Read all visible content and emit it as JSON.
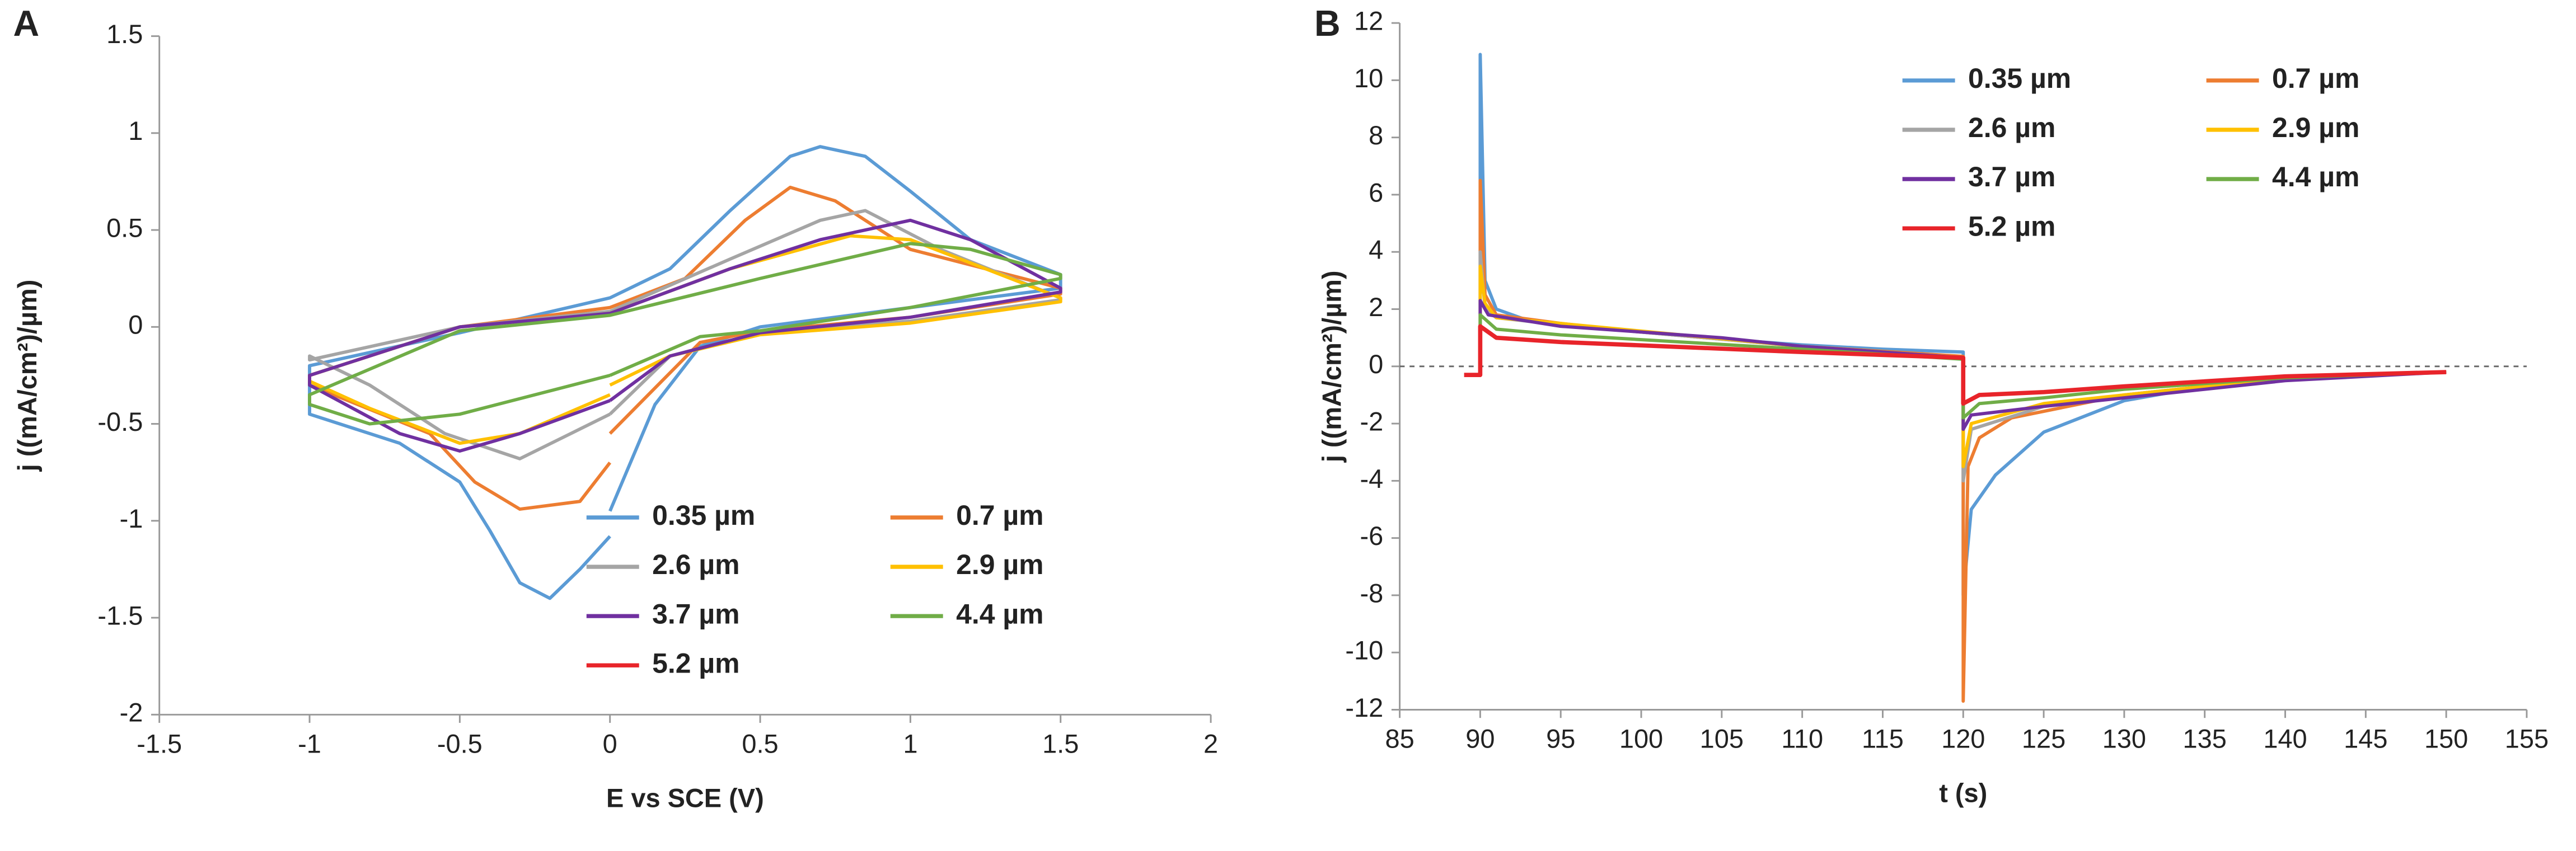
{
  "chart_data": [
    {
      "type": "line",
      "label": "A",
      "x_label": "E vs SCE (V)",
      "y_label": "j ((mA/cm²)/µm)",
      "xlim": [
        -1.5,
        2
      ],
      "xticks": [
        -1.5,
        -1,
        -0.5,
        0,
        0.5,
        1,
        1.5,
        2
      ],
      "ylim": [
        -2,
        1.5
      ],
      "yticks": [
        -2,
        -1.5,
        -1,
        -0.5,
        0,
        0.5,
        1,
        1.5
      ],
      "grid": false,
      "zero_line": false,
      "legend": "lower right",
      "series": [
        {
          "name": "0.35 µm",
          "color": "#5b9bd5",
          "x": [
            0,
            -0.1,
            -0.2,
            -0.3,
            -0.4,
            -0.5,
            -0.7,
            -1,
            -1,
            -0.5,
            0,
            0.2,
            0.4,
            0.6,
            0.7,
            0.85,
            1,
            1.2,
            1.5,
            1.5,
            1,
            0.5,
            0.3,
            0.15,
            0
          ],
          "values": [
            -1.08,
            -1.25,
            -1.4,
            -1.32,
            -1.05,
            -0.8,
            -0.6,
            -0.45,
            -0.2,
            -0.03,
            0.15,
            0.3,
            0.6,
            0.88,
            0.93,
            0.88,
            0.7,
            0.45,
            0.27,
            0.2,
            0.1,
            0,
            -0.1,
            -0.4,
            -0.95
          ]
        },
        {
          "name": "0.7 µm",
          "color": "#ed7d31",
          "x": [
            0,
            -0.1,
            -0.3,
            -0.45,
            -0.6,
            -1,
            -1,
            -0.5,
            0,
            0.25,
            0.45,
            0.6,
            0.75,
            1,
            1.5,
            1.5,
            1,
            0.5,
            0.3,
            0
          ],
          "values": [
            -0.7,
            -0.9,
            -0.94,
            -0.8,
            -0.55,
            -0.3,
            -0.25,
            0,
            0.1,
            0.25,
            0.55,
            0.72,
            0.65,
            0.4,
            0.2,
            0.17,
            0.05,
            -0.02,
            -0.08,
            -0.55
          ]
        },
        {
          "name": "2.6 µm",
          "color": "#a5a5a5",
          "x": [
            0,
            -0.3,
            -0.55,
            -0.8,
            -1,
            -1,
            -0.5,
            0,
            0.4,
            0.7,
            0.85,
            1.1,
            1.5,
            1.5,
            1,
            0.5,
            0.2,
            0
          ],
          "values": [
            -0.45,
            -0.68,
            -0.55,
            -0.3,
            -0.15,
            -0.17,
            0,
            0.08,
            0.35,
            0.55,
            0.6,
            0.4,
            0.15,
            0.14,
            0.03,
            -0.03,
            -0.15,
            -0.45
          ]
        },
        {
          "name": "2.9 µm",
          "color": "#ffc000",
          "x": [
            0,
            -0.3,
            -0.5,
            -0.8,
            -1,
            -1,
            -0.5,
            0,
            0.4,
            0.8,
            1,
            1.5,
            1.5,
            1,
            0.5,
            0.2,
            0
          ],
          "values": [
            -0.35,
            -0.55,
            -0.6,
            -0.42,
            -0.28,
            -0.25,
            0,
            0.07,
            0.3,
            0.47,
            0.45,
            0.15,
            0.13,
            0.02,
            -0.04,
            -0.15,
            -0.3
          ]
        },
        {
          "name": "3.7 µm",
          "color": "#7030a0",
          "x": [
            0,
            -0.3,
            -0.5,
            -0.7,
            -1,
            -1,
            -0.5,
            0,
            0.4,
            0.7,
            1,
            1.2,
            1.5,
            1.5,
            1,
            0.5,
            0.2,
            0
          ],
          "values": [
            -0.38,
            -0.55,
            -0.64,
            -0.55,
            -0.3,
            -0.25,
            0,
            0.07,
            0.3,
            0.45,
            0.55,
            0.45,
            0.2,
            0.18,
            0.05,
            -0.03,
            -0.15,
            -0.38
          ]
        },
        {
          "name": "4.4 µm",
          "color": "#70ad47",
          "x": [
            0,
            -0.5,
            -0.8,
            -1,
            -1,
            -0.5,
            0,
            0.5,
            1,
            1.2,
            1.5,
            1.5,
            1,
            0.5,
            0.3,
            0
          ],
          "values": [
            -0.25,
            -0.45,
            -0.5,
            -0.4,
            -0.35,
            -0.02,
            0.06,
            0.25,
            0.43,
            0.4,
            0.27,
            0.25,
            0.1,
            -0.02,
            -0.05,
            -0.25
          ]
        },
        {
          "name": "5.2 µm",
          "color": "#e8242a",
          "x": [],
          "values": []
        }
      ]
    },
    {
      "type": "line",
      "label": "B",
      "x_label": "t (s)",
      "y_label": "j ((mA/cm²)/µm)",
      "xlim": [
        85,
        155
      ],
      "xticks": [
        85,
        90,
        95,
        100,
        105,
        110,
        115,
        120,
        125,
        130,
        135,
        140,
        145,
        150,
        155
      ],
      "ylim": [
        -12,
        12
      ],
      "yticks": [
        -12,
        -10,
        -8,
        -6,
        -4,
        -2,
        0,
        2,
        4,
        6,
        8,
        10,
        12
      ],
      "grid": false,
      "zero_line": true,
      "legend": "upper right",
      "series": [
        {
          "name": "0.35 µm",
          "color": "#5b9bd5",
          "x": [
            90,
            90,
            90.3,
            91,
            93,
            95,
            100,
            105,
            110,
            115,
            120,
            120,
            120.5,
            122,
            125,
            130,
            135,
            140,
            150
          ],
          "values": [
            0,
            10.9,
            3,
            2,
            1.6,
            1.45,
            1.2,
            0.95,
            0.75,
            0.6,
            0.5,
            -8,
            -5,
            -3.8,
            -2.3,
            -1.2,
            -0.7,
            -0.4,
            -0.2
          ]
        },
        {
          "name": "0.7 µm",
          "color": "#ed7d31",
          "x": [
            90,
            90,
            90.3,
            91,
            95,
            100,
            110,
            120,
            120,
            120.3,
            121,
            123,
            130,
            140,
            150
          ],
          "values": [
            0,
            6.5,
            2.5,
            1.8,
            1.5,
            1.2,
            0.7,
            0.35,
            -11.7,
            -3.5,
            -2.5,
            -1.8,
            -1,
            -0.4,
            -0.2
          ]
        },
        {
          "name": "2.6 µm",
          "color": "#a5a5a5",
          "x": [
            90,
            90,
            90.3,
            91,
            95,
            110,
            120,
            120,
            120.5,
            125,
            130,
            140,
            150
          ],
          "values": [
            0,
            4,
            2,
            1.7,
            1.45,
            0.7,
            0.3,
            -4,
            -2.2,
            -1.4,
            -1,
            -0.4,
            -0.2
          ]
        },
        {
          "name": "2.9 µm",
          "color": "#ffc000",
          "x": [
            90,
            90,
            90.3,
            91,
            95,
            110,
            120,
            120,
            120.5,
            125,
            130,
            140,
            150
          ],
          "values": [
            0,
            3.5,
            2.2,
            1.7,
            1.5,
            0.7,
            0.3,
            -3.5,
            -2,
            -1.3,
            -1,
            -0.4,
            -0.2
          ]
        },
        {
          "name": "3.7 µm",
          "color": "#7030a0",
          "x": [
            90,
            90,
            90.5,
            95,
            105,
            110,
            120,
            120,
            120.5,
            125,
            130,
            140,
            150
          ],
          "values": [
            0,
            2.3,
            1.8,
            1.4,
            1,
            0.7,
            0.3,
            -2.2,
            -1.7,
            -1.4,
            -1.1,
            -0.5,
            -0.2
          ]
        },
        {
          "name": "4.4 µm",
          "color": "#70ad47",
          "x": [
            90,
            90,
            91,
            95,
            110,
            120,
            120,
            121,
            125,
            130,
            140,
            150
          ],
          "values": [
            0,
            1.8,
            1.3,
            1.1,
            0.6,
            0.25,
            -1.8,
            -1.3,
            -1.1,
            -0.8,
            -0.4,
            -0.2
          ]
        },
        {
          "name": "5.2 µm",
          "color": "#e8242a",
          "x": [
            89,
            90,
            90,
            91,
            95,
            110,
            120,
            120,
            121,
            125,
            130,
            140,
            150
          ],
          "values": [
            -0.3,
            -0.3,
            1.4,
            1,
            0.85,
            0.5,
            0.3,
            -1.3,
            -1,
            -0.9,
            -0.7,
            -0.35,
            -0.2
          ]
        }
      ]
    }
  ]
}
